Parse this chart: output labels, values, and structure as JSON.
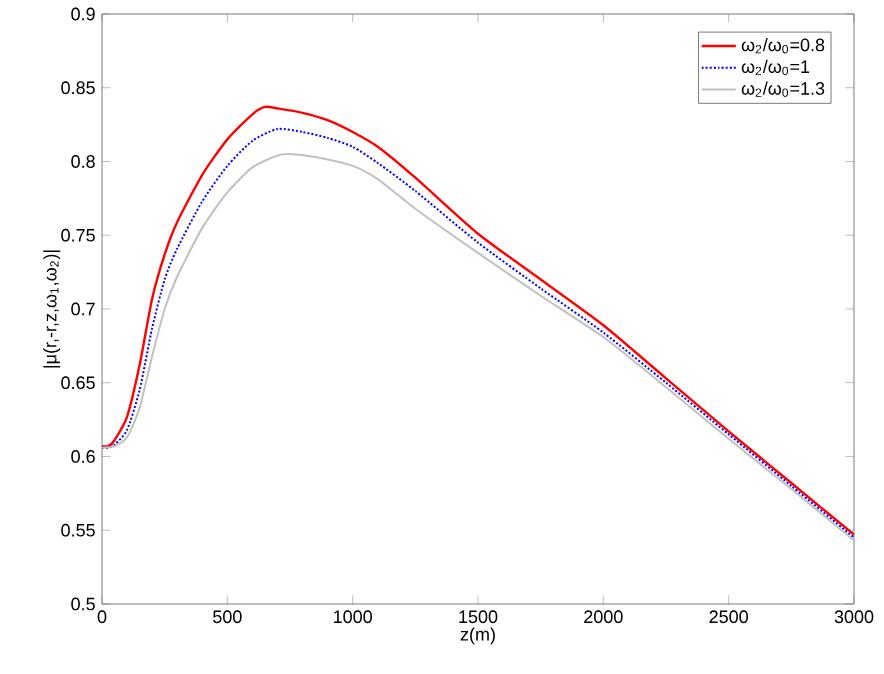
{
  "chart_data": {
    "type": "line",
    "xlabel": "z(m)",
    "ylabel": "|μ(r,-r,z,ω$_{1}$,ω$_{2}$)|",
    "xlim": [
      0,
      3000
    ],
    "ylim": [
      0.5,
      0.9
    ],
    "xticks": [
      0,
      500,
      1000,
      1500,
      2000,
      2500,
      3000
    ],
    "yticks": [
      0.5,
      0.55,
      0.6,
      0.65,
      0.7,
      0.75,
      0.8,
      0.85,
      0.9
    ],
    "grid": false,
    "legend": "top right",
    "marker": "none",
    "series": [
      {
        "name": "ω$_{2}$/ω$_{0}$=0.8",
        "color": "#ff0000",
        "line_style": "solid",
        "x": [
          0,
          25,
          50,
          100,
          150,
          200,
          250,
          300,
          400,
          500,
          600,
          650,
          700,
          800,
          900,
          1000,
          1100,
          1250,
          1500,
          1750,
          2000,
          2250,
          2500,
          2750,
          3000
        ],
        "values": [
          0.607,
          0.607,
          0.611,
          0.627,
          0.662,
          0.707,
          0.737,
          0.759,
          0.791,
          0.815,
          0.832,
          0.837,
          0.836,
          0.833,
          0.828,
          0.82,
          0.81,
          0.789,
          0.751,
          0.72,
          0.689,
          0.653,
          0.617,
          0.582,
          0.547
        ]
      },
      {
        "name": "ω$_{2}$/ω$_{0}$=1",
        "color": "#0000ff",
        "line_style": "dotted",
        "x": [
          0,
          25,
          50,
          100,
          150,
          200,
          250,
          300,
          400,
          500,
          600,
          700,
          800,
          900,
          1000,
          1100,
          1250,
          1500,
          1750,
          2000,
          2250,
          2500,
          2750,
          3000
        ],
        "values": [
          0.606,
          0.606,
          0.608,
          0.618,
          0.645,
          0.687,
          0.72,
          0.741,
          0.773,
          0.797,
          0.814,
          0.822,
          0.82,
          0.816,
          0.81,
          0.799,
          0.78,
          0.745,
          0.714,
          0.684,
          0.65,
          0.615,
          0.58,
          0.545
        ]
      },
      {
        "name": "ω$_{2}$/ω$_{0}$=1.3",
        "color": "#c0c0c0",
        "line_style": "solid",
        "x": [
          0,
          50,
          100,
          150,
          200,
          250,
          300,
          400,
          500,
          600,
          700,
          750,
          850,
          1000,
          1100,
          1250,
          1500,
          1750,
          2000,
          2250,
          2500,
          2750,
          3000
        ],
        "values": [
          0.606,
          0.607,
          0.613,
          0.633,
          0.668,
          0.7,
          0.722,
          0.755,
          0.779,
          0.796,
          0.804,
          0.805,
          0.803,
          0.797,
          0.788,
          0.768,
          0.738,
          0.709,
          0.681,
          0.647,
          0.612,
          0.578,
          0.543
        ]
      }
    ]
  }
}
